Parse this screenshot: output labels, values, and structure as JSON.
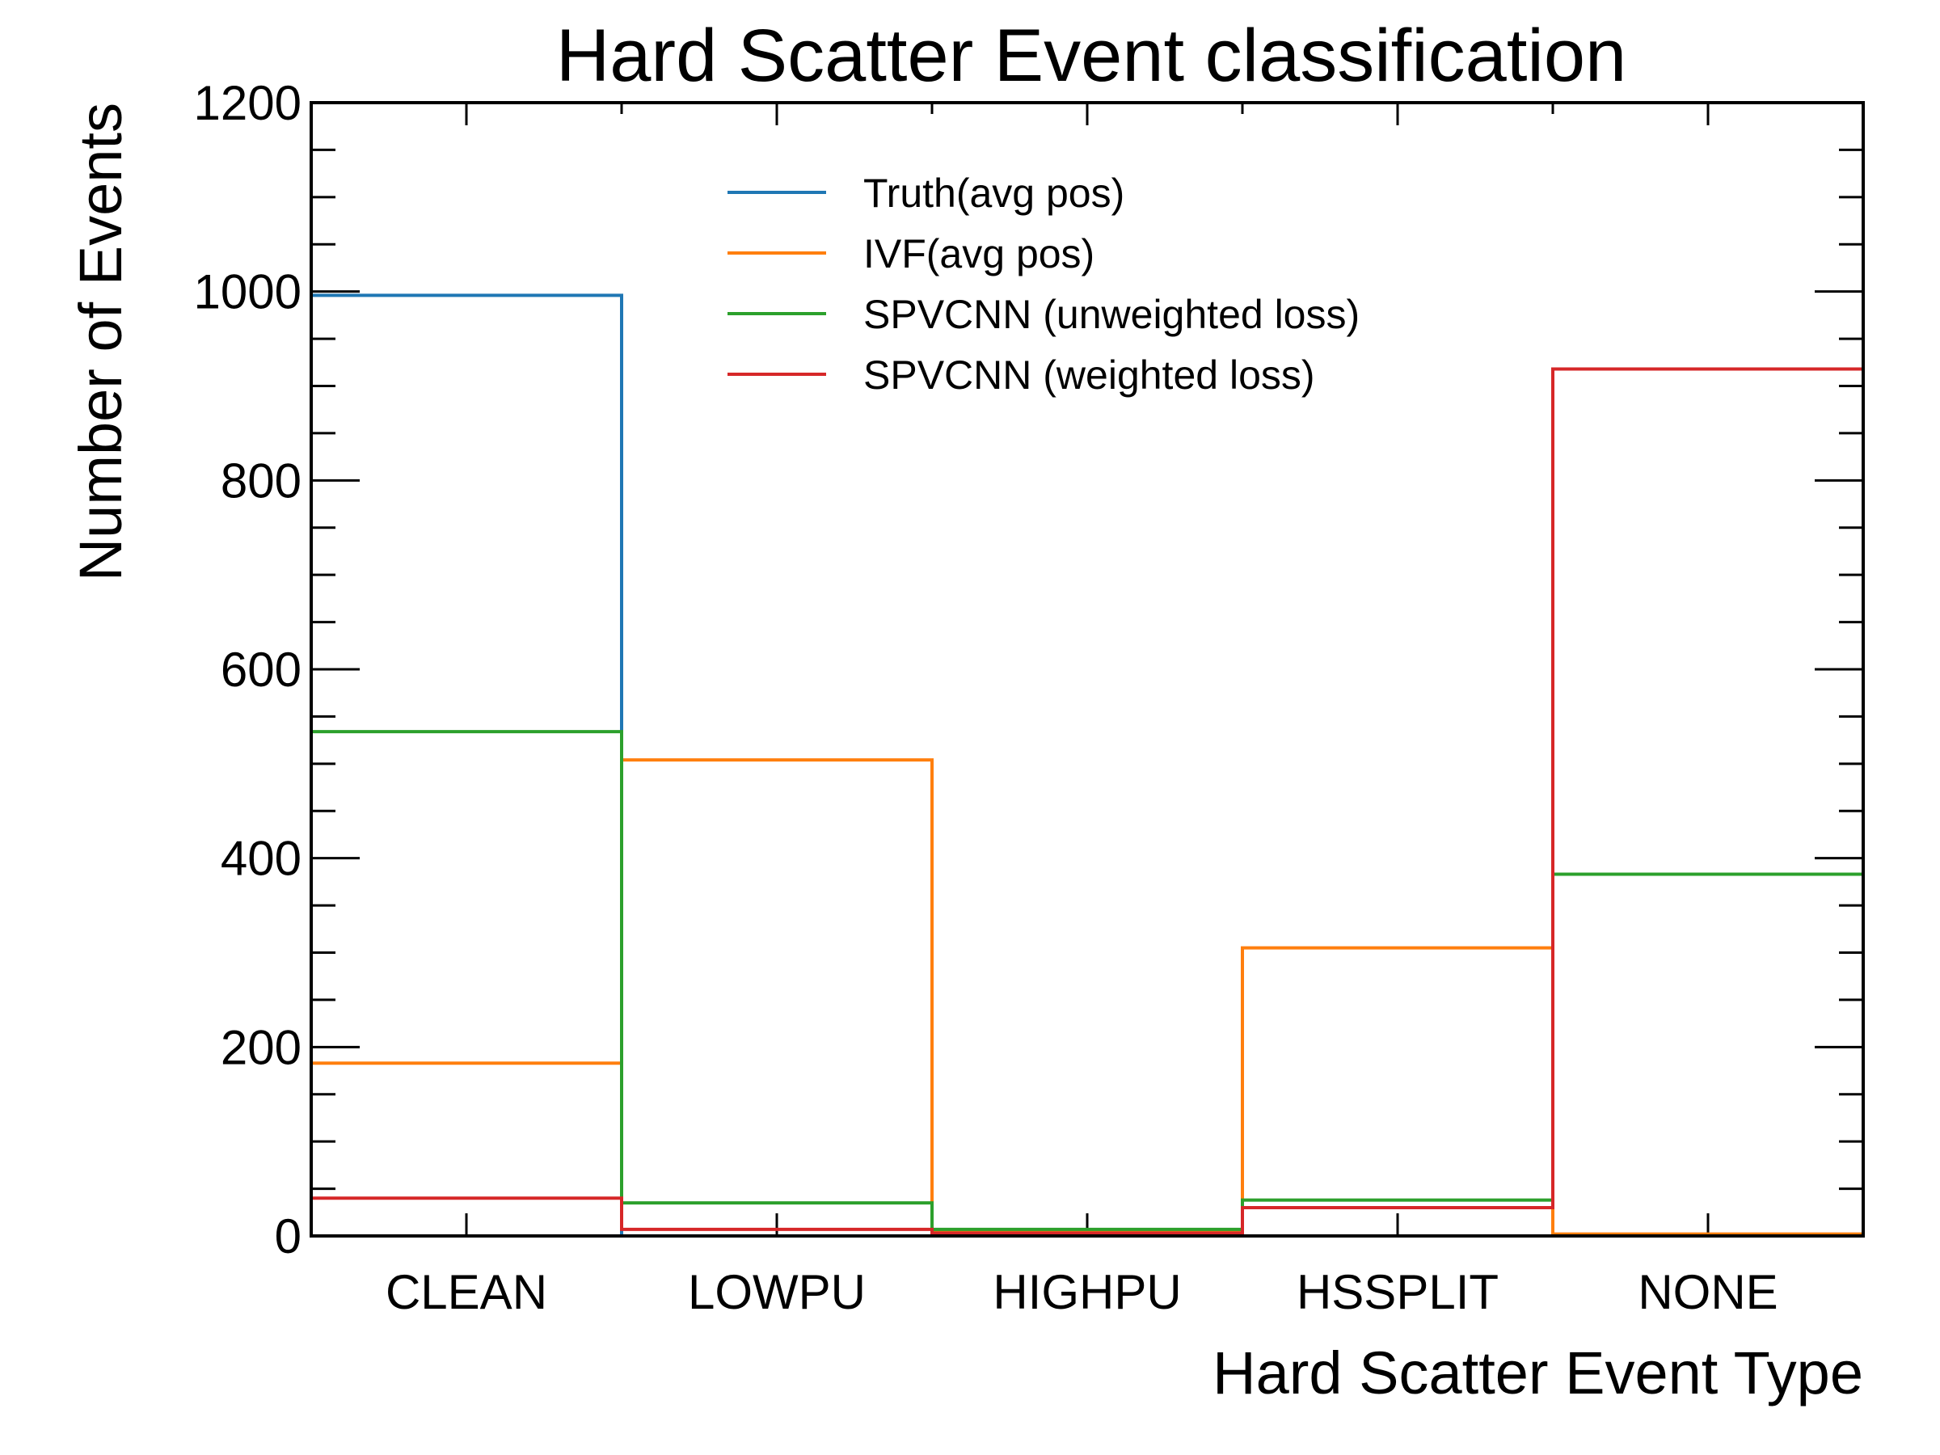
{
  "chart_data": {
    "type": "step-histogram",
    "title": "Hard Scatter Event classification",
    "xlabel": "Hard Scatter Event Type",
    "ylabel": "Number of Events",
    "categories": [
      "CLEAN",
      "LOWPU",
      "HIGHPU",
      "HSSPLIT",
      "NONE"
    ],
    "ylim": [
      0,
      1200
    ],
    "yticks": [
      0,
      200,
      400,
      600,
      800,
      1000,
      1200
    ],
    "y_minor_step": 50,
    "grid": false,
    "legend_position": "top-center",
    "series": [
      {
        "name": "Truth(avg pos)",
        "color": "#1f77b4",
        "values": [
          996,
          0,
          0,
          0,
          0
        ]
      },
      {
        "name": "IVF(avg pos)",
        "color": "#ff7f0e",
        "values": [
          183,
          504,
          4,
          305,
          2
        ]
      },
      {
        "name": "SPVCNN (unweighted loss)",
        "color": "#2ca02c",
        "values": [
          534,
          35,
          7,
          38,
          383
        ]
      },
      {
        "name": "SPVCNN (weighted loss)",
        "color": "#d62728",
        "values": [
          40,
          7,
          3,
          30,
          918
        ]
      }
    ]
  }
}
